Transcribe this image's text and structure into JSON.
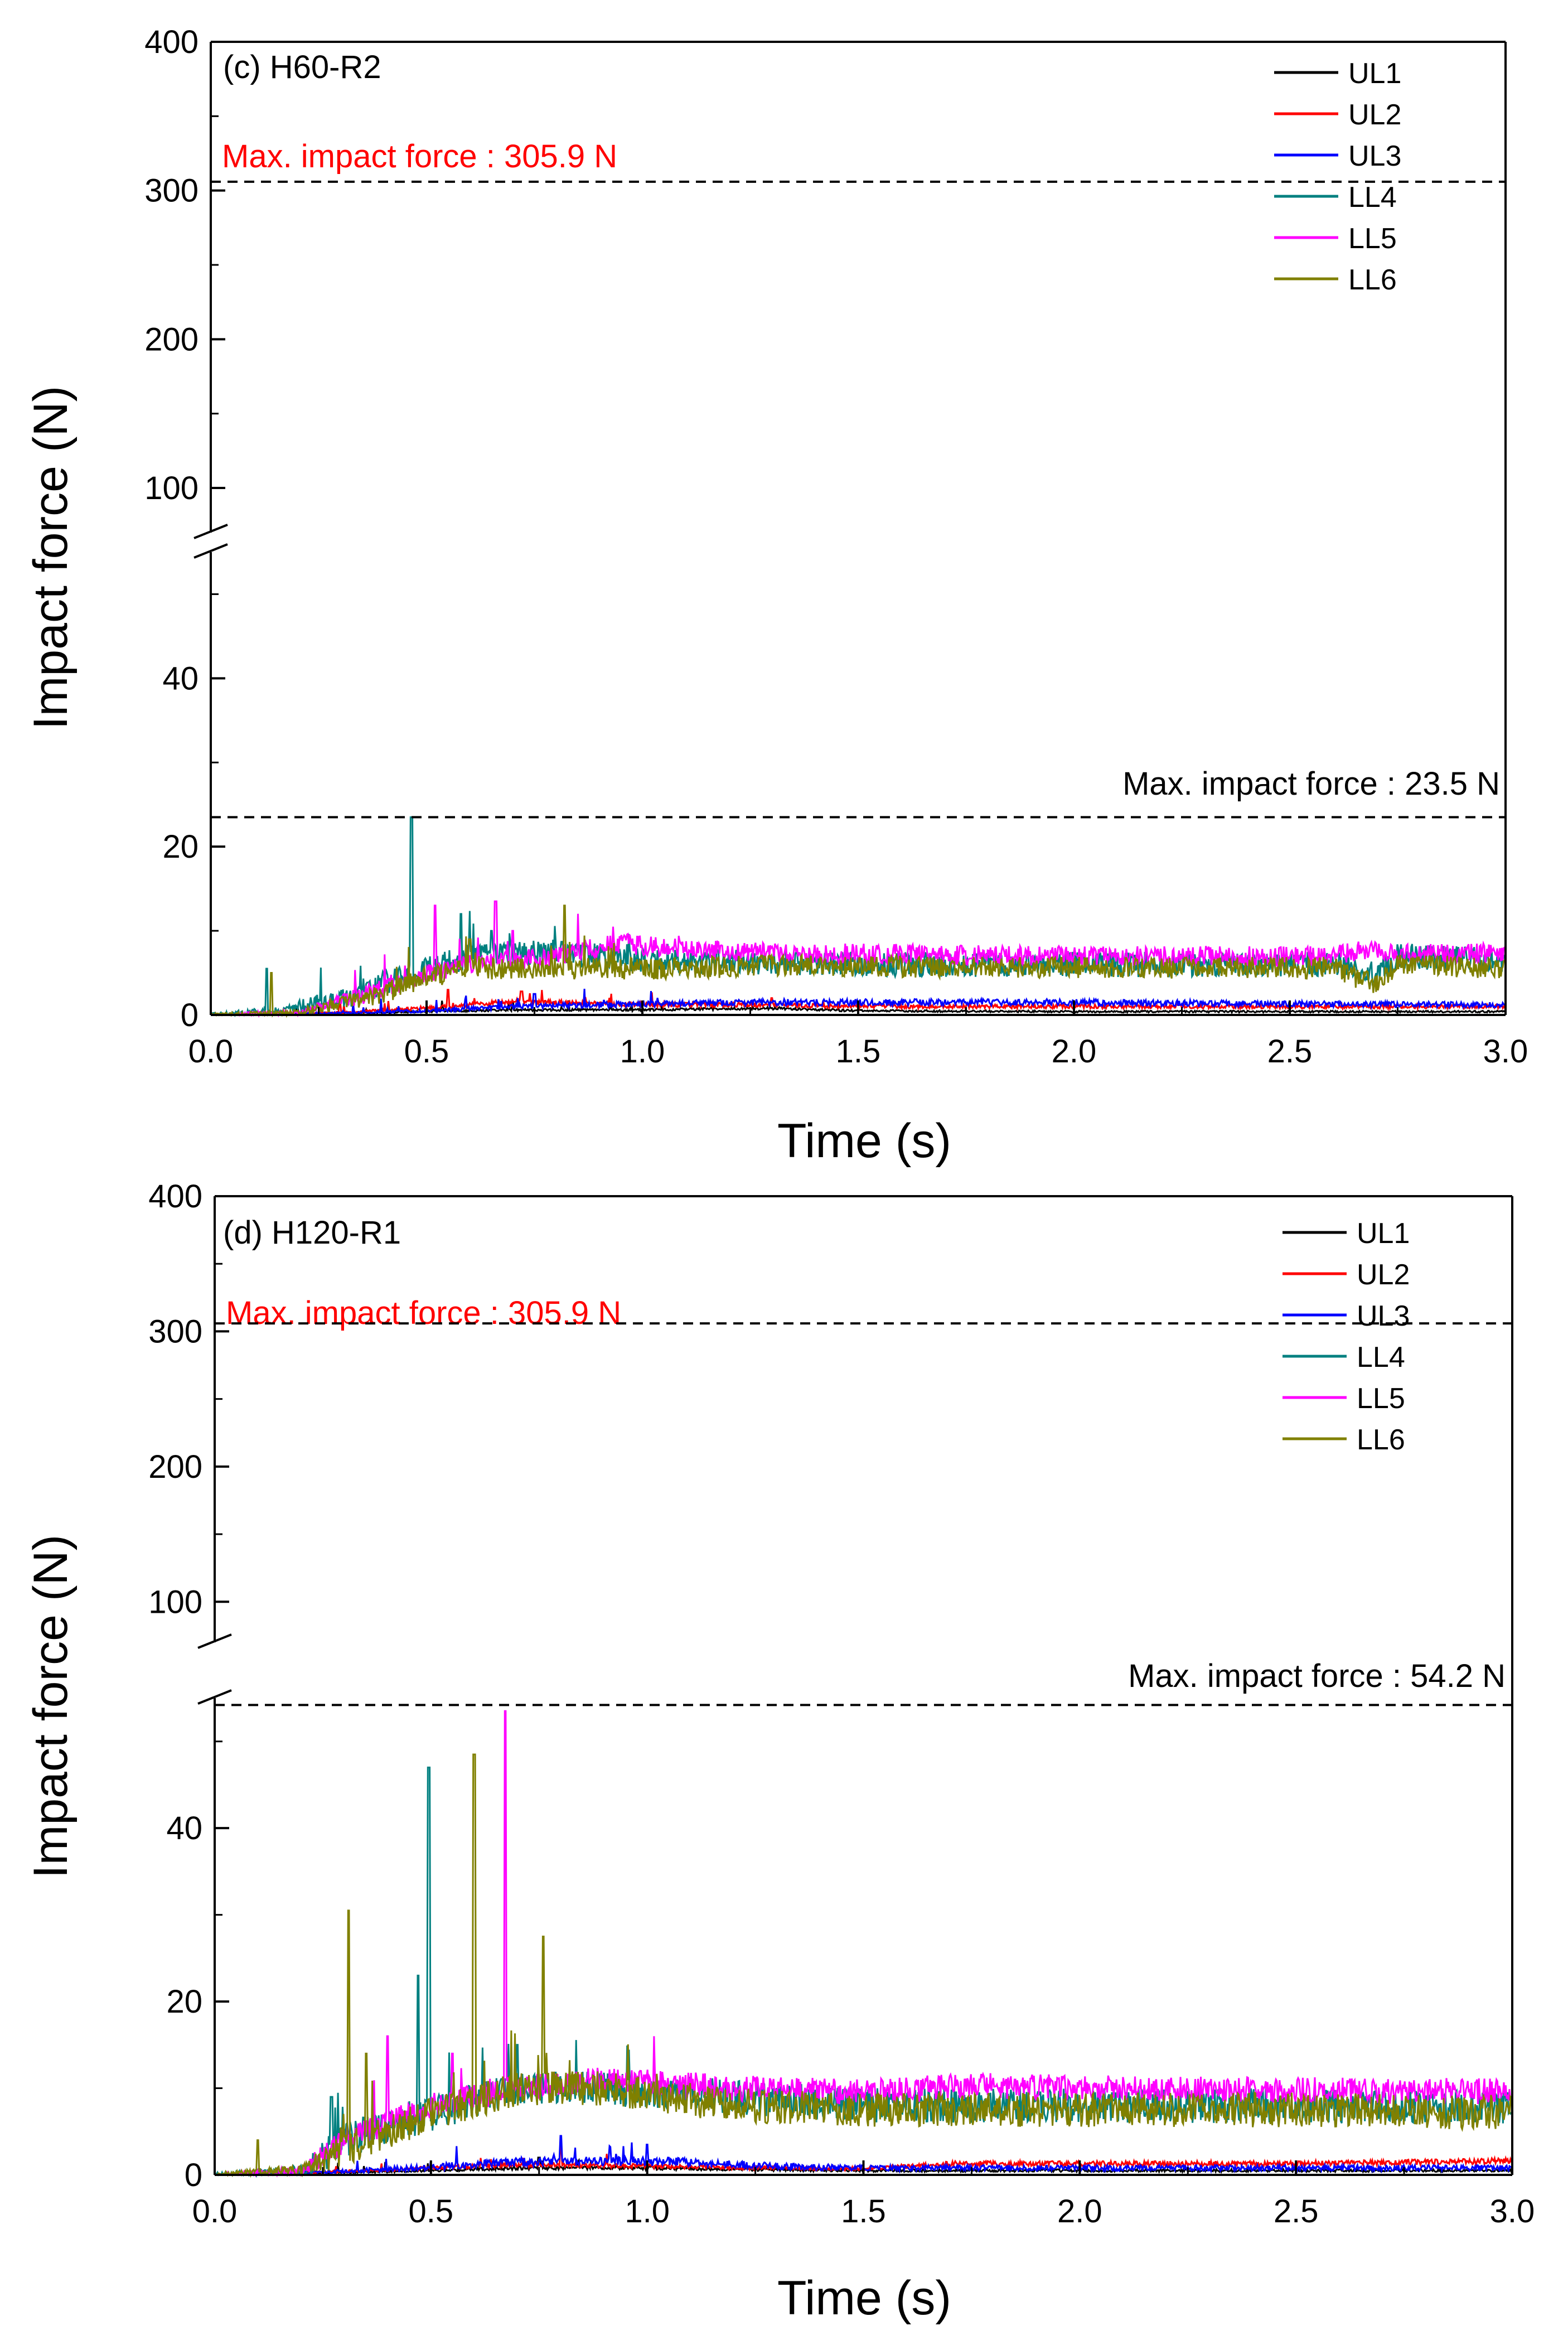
{
  "colors": {
    "UL1": "#000000",
    "UL2": "#ff0000",
    "UL3": "#0000ff",
    "LL4": "#008080",
    "LL5": "#ff00ff",
    "LL6": "#808000",
    "max_red": "#ff0000",
    "max_black": "#000000"
  },
  "chart_data": [
    {
      "type": "line",
      "panel_label": "(c) H60-R2",
      "xlabel": "Time (s)",
      "ylabel": "Impact force (N)",
      "xlim": [
        0.0,
        3.0
      ],
      "x_ticks": [
        "0.0",
        "0.5",
        "1.0",
        "1.5",
        "2.0",
        "2.5",
        "3.0"
      ],
      "y_axis_broken": true,
      "y_lower_range": [
        0,
        55
      ],
      "y_upper_range": [
        70,
        400
      ],
      "y_ticks_lower": [
        "0",
        "20",
        "40"
      ],
      "y_ticks_upper": [
        "100",
        "200",
        "300",
        "400"
      ],
      "legend": [
        "UL1",
        "UL2",
        "UL3",
        "LL4",
        "LL5",
        "LL6"
      ],
      "annotations": [
        {
          "text": "Max. impact force : 305.9 N",
          "value": 305.9,
          "color": "red"
        },
        {
          "text": "Max. impact force : 23.5 N",
          "value": 23.5,
          "color": "black"
        }
      ],
      "series": [
        {
          "name": "UL1",
          "x": [
            0,
            0.3,
            0.5,
            0.7,
            1.0,
            1.3,
            1.5,
            2.0,
            2.5,
            3.0
          ],
          "y": [
            0,
            0.2,
            0.4,
            0.6,
            0.6,
            0.8,
            0.5,
            0.4,
            0.4,
            0.4
          ],
          "noise": 0.4,
          "peaks": [
            [
              0.2,
              1
            ],
            [
              0.7,
              1.5
            ]
          ]
        },
        {
          "name": "UL2",
          "x": [
            0,
            0.3,
            0.5,
            0.7,
            1.0,
            1.3,
            1.5,
            2.0,
            2.5,
            3.0
          ],
          "y": [
            0,
            0.3,
            0.8,
            1.6,
            1.2,
            1.2,
            1.0,
            1.0,
            1.0,
            1.0
          ],
          "noise": 0.5,
          "peaks": [
            [
              0.55,
              3
            ],
            [
              0.72,
              2.8
            ],
            [
              1.3,
              2
            ]
          ]
        },
        {
          "name": "UL3",
          "x": [
            0,
            0.3,
            0.5,
            0.7,
            1.0,
            1.3,
            1.5,
            2.0,
            2.5,
            3.0
          ],
          "y": [
            0,
            0.2,
            0.5,
            1.0,
            1.3,
            1.5,
            1.5,
            1.5,
            1.3,
            1.2
          ],
          "noise": 0.6,
          "peaks": [
            [
              0.75,
              2.5
            ]
          ]
        },
        {
          "name": "LL4",
          "x": [
            0,
            0.15,
            0.3,
            0.45,
            0.6,
            0.8,
            1.0,
            1.5,
            2.0,
            2.6,
            2.7,
            2.75,
            3.0
          ],
          "y": [
            0,
            0.5,
            2,
            4.5,
            7,
            7.5,
            6.5,
            6,
            6,
            6,
            5,
            7,
            6.5
          ],
          "noise": 1.5,
          "peaks": [
            [
              0.13,
              5.5
            ],
            [
              0.465,
              23.5
            ],
            [
              0.58,
              12
            ],
            [
              0.65,
              10
            ]
          ]
        },
        {
          "name": "LL5",
          "x": [
            0,
            0.2,
            0.4,
            0.5,
            0.6,
            0.8,
            0.95,
            1.2,
            1.5,
            2.0,
            2.6,
            2.7,
            2.75,
            3.0
          ],
          "y": [
            0,
            0.3,
            3,
            5,
            6,
            7,
            8.5,
            7.5,
            7.3,
            7,
            7,
            8,
            7.3,
            7.3
          ],
          "noise": 1.2,
          "peaks": [
            [
              0.52,
              13
            ],
            [
              0.66,
              13.5
            ],
            [
              0.7,
              10
            ]
          ]
        },
        {
          "name": "LL6",
          "x": [
            0,
            0.2,
            0.4,
            0.5,
            0.6,
            0.8,
            1.0,
            1.3,
            1.5,
            2.0,
            2.6,
            2.7,
            2.75,
            3.0
          ],
          "y": [
            0,
            0.3,
            2.5,
            4.5,
            5.5,
            5.5,
            5.5,
            5.8,
            5.8,
            5.6,
            5.6,
            3.5,
            6,
            5.6
          ],
          "noise": 1.3,
          "peaks": [
            [
              0.14,
              5
            ],
            [
              0.82,
              13
            ],
            [
              0.6,
              9
            ]
          ]
        }
      ]
    },
    {
      "type": "line",
      "panel_label": "(d) H120-R1",
      "xlabel": "Time (s)",
      "ylabel": "Impact force (N)",
      "xlim": [
        0.0,
        3.0
      ],
      "x_ticks": [
        "0.0",
        "0.5",
        "1.0",
        "1.5",
        "2.0",
        "2.5",
        "3.0"
      ],
      "y_axis_broken": true,
      "y_lower_range": [
        0,
        55
      ],
      "y_upper_range": [
        70,
        400
      ],
      "y_ticks_lower": [
        "0",
        "20",
        "40"
      ],
      "y_ticks_upper": [
        "100",
        "200",
        "300",
        "400"
      ],
      "legend": [
        "UL1",
        "UL2",
        "UL3",
        "LL4",
        "LL5",
        "LL6"
      ],
      "annotations": [
        {
          "text": "Max. impact force : 305.9 N",
          "value": 305.9,
          "color": "red"
        },
        {
          "text": "Max. impact force : 54.2 N",
          "value": 54.2,
          "color": "black"
        }
      ],
      "series": [
        {
          "name": "UL1",
          "x": [
            0,
            0.3,
            0.5,
            0.7,
            1.0,
            1.3,
            1.5,
            2.0,
            2.5,
            3.0
          ],
          "y": [
            0,
            0.3,
            0.5,
            0.8,
            0.8,
            0.6,
            0.5,
            0.5,
            0.5,
            0.5
          ],
          "noise": 0.5,
          "peaks": [
            [
              0.75,
              2
            ]
          ]
        },
        {
          "name": "UL2",
          "x": [
            0,
            0.3,
            0.5,
            0.7,
            1.0,
            1.3,
            1.5,
            1.7,
            2.0,
            2.5,
            3.0
          ],
          "y": [
            0,
            0.4,
            0.8,
            1.2,
            1.0,
            0.8,
            0.7,
            1.3,
            1.3,
            1.3,
            1.6
          ],
          "noise": 0.5,
          "peaks": [
            [
              0.8,
              3.5
            ]
          ]
        },
        {
          "name": "UL3",
          "x": [
            0,
            0.3,
            0.5,
            0.7,
            1.0,
            1.3,
            1.5,
            2.0,
            2.5,
            3.0
          ],
          "y": [
            0,
            0.4,
            0.9,
            1.5,
            1.6,
            1.0,
            0.8,
            0.8,
            0.8,
            0.8
          ],
          "noise": 0.8,
          "peaks": [
            [
              0.8,
              4.5
            ],
            [
              1.0,
              3.5
            ]
          ]
        },
        {
          "name": "LL4",
          "x": [
            0,
            0.2,
            0.3,
            0.5,
            0.7,
            0.9,
            1.2,
            1.5,
            2.0,
            2.5,
            3.0
          ],
          "y": [
            0,
            0.5,
            4,
            7,
            10,
            10,
            9,
            8,
            8,
            8,
            7.8
          ],
          "noise": 2.0,
          "peaks": [
            [
              0.27,
              9
            ],
            [
              0.495,
              47
            ],
            [
              0.47,
              23
            ],
            [
              0.7,
              15
            ]
          ]
        },
        {
          "name": "LL5",
          "x": [
            0,
            0.2,
            0.3,
            0.5,
            0.7,
            0.9,
            1.2,
            1.5,
            1.75,
            2.0,
            2.5,
            3.0
          ],
          "y": [
            0,
            0.5,
            4,
            8,
            10,
            11,
            10,
            9.5,
            10.3,
            10,
            9.8,
            9.6
          ],
          "noise": 1.5,
          "peaks": [
            [
              0.672,
              53.5
            ],
            [
              0.4,
              16
            ],
            [
              0.55,
              14
            ],
            [
              1.85,
              11
            ]
          ]
        },
        {
          "name": "LL6",
          "x": [
            0,
            0.1,
            0.2,
            0.3,
            0.5,
            0.7,
            0.9,
            1.2,
            1.5,
            2.0,
            2.5,
            3.0
          ],
          "y": [
            0,
            0.3,
            0.5,
            3,
            7,
            10,
            10,
            8,
            7.5,
            7.5,
            7.5,
            7.2
          ],
          "noise": 2.0,
          "peaks": [
            [
              0.31,
              30.5
            ],
            [
              0.6,
              48.5
            ],
            [
              0.76,
              27.5
            ],
            [
              0.35,
              14
            ],
            [
              0.1,
              4
            ]
          ]
        }
      ]
    }
  ]
}
